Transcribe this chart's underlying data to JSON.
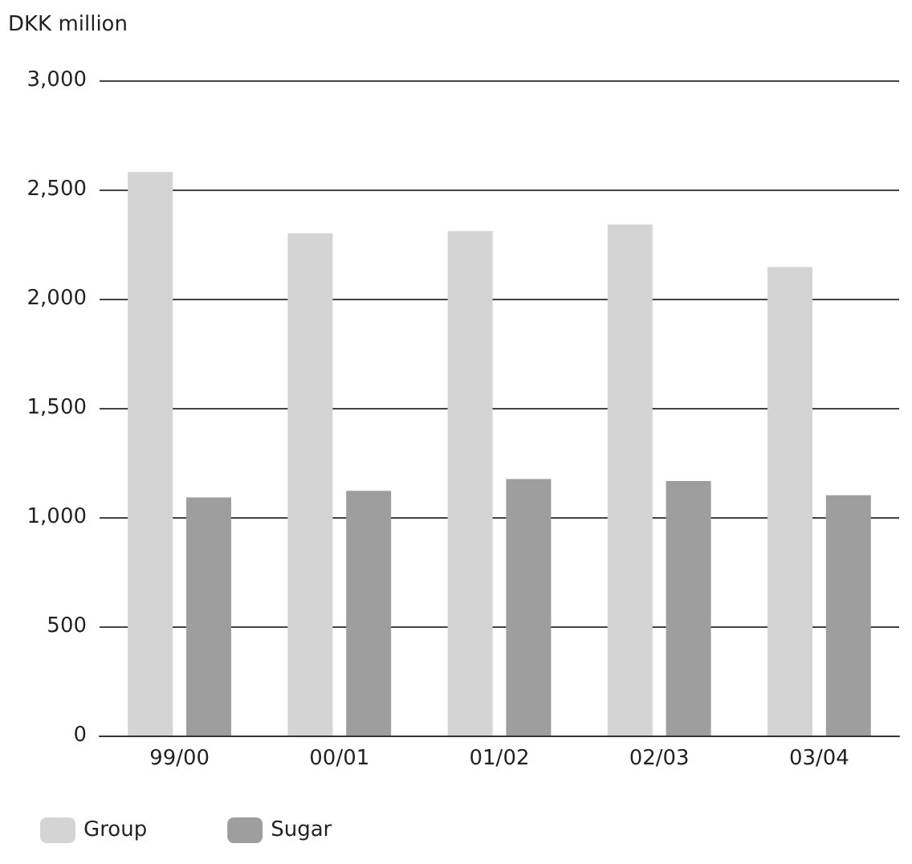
{
  "chart_data": {
    "type": "bar",
    "ylabel": "DKK million",
    "categories": [
      "99/00",
      "00/01",
      "01/02",
      "02/03",
      "03/04"
    ],
    "series": [
      {
        "name": "Group",
        "color": "#d4d4d4",
        "values": [
          2580,
          2300,
          2310,
          2340,
          2145
        ]
      },
      {
        "name": "Sugar",
        "color": "#9e9e9e",
        "values": [
          1090,
          1120,
          1175,
          1165,
          1100
        ]
      }
    ],
    "ylim": [
      0,
      3000
    ],
    "yticks": [
      0,
      500,
      {
        "value": 1000,
        "label": "1,000"
      },
      {
        "value": 1500,
        "label": "1,500"
      },
      {
        "value": 2000,
        "label": "2,000"
      },
      {
        "value": 2500,
        "label": "2,500"
      },
      {
        "value": 3000,
        "label": "3,000"
      }
    ],
    "grid": "y",
    "legend": "bottom left"
  }
}
